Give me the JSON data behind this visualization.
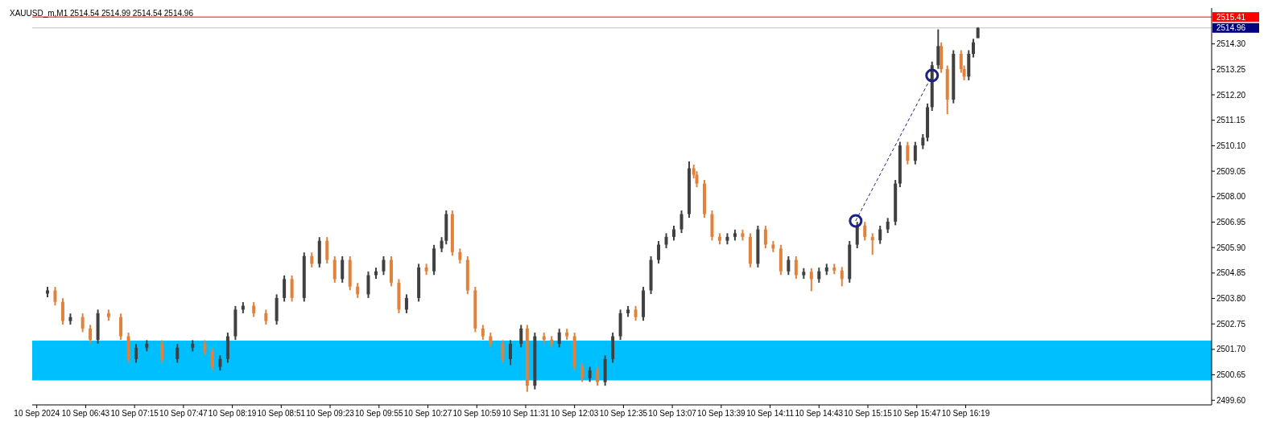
{
  "chart_data": {
    "type": "candlestick",
    "title": "XAUUSD_m,M1  2514.54 2514.99 2514.54 2514.96",
    "colors": [
      "#404040",
      "#e0823c",
      "#e0823c",
      "#404040",
      "#e0823c",
      "#e0823c",
      "#404040",
      "#e0823c",
      "#e0823c",
      "#e0823c",
      "#404040",
      "#404040",
      "#e0823c",
      "#404040",
      "#404040",
      "#e0823c",
      "#e0823c",
      "#404040",
      "#404040",
      "#404040",
      "#404040",
      "#e0823c",
      "#e0823c",
      "#404040",
      "#404040",
      "#e0823c",
      "#404040",
      "#e0823c",
      "#404040",
      "#e0823c",
      "#e0823c",
      "#404040",
      "#e0823c",
      "#e0823c",
      "#404040",
      "#404040",
      "#404040",
      "#e0823c",
      "#e0823c",
      "#404040",
      "#404040",
      "#e0823c",
      "#404040",
      "#404040",
      "#404040",
      "#e0823c",
      "#e0823c",
      "#e0823c",
      "#e0823c",
      "#e0823c",
      "#e0823c",
      "#e0823c",
      "#404040",
      "#404040",
      "#e0823c",
      "#404040",
      "#e0823c",
      "#e0823c",
      "#404040",
      "#e0823c",
      "#e0823c",
      "#e0823c",
      "#404040",
      "#e0823c",
      "#404040",
      "#404040",
      "#404040",
      "#404040",
      "#e0823c",
      "#404040",
      "#404040",
      "#404040",
      "#404040",
      "#404040",
      "#404040",
      "#404040",
      "#e0823c",
      "#e0823c",
      "#e0823c",
      "#e0823c",
      "#e0823c",
      "#404040",
      "#404040",
      "#e0823c",
      "#e0823c",
      "#404040",
      "#e0823c",
      "#e0823c",
      "#e0823c",
      "#404040",
      "#e0823c",
      "#404040",
      "#e0823c",
      "#404040",
      "#404040",
      "#e0823c",
      "#e0823c",
      "#404040",
      "#404040",
      "#e0823c",
      "#e0823c",
      "#404040",
      "#404040",
      "#404040",
      "#404040",
      "#e0823c",
      "#404040",
      "#404040",
      "#404040",
      "#404040",
      "#404040",
      "#e0823c",
      "#e0823c",
      "#404040",
      "#e0823c",
      "#e0823c",
      "#404040",
      "#404040",
      "#404040"
    ],
    "x": [
      "2024-09-10T06:18",
      "2024-09-10T06:23",
      "2024-09-10T06:28",
      "2024-09-10T06:33",
      "2024-09-10T06:41",
      "2024-09-10T06:46",
      "2024-09-10T06:51",
      "2024-09-10T06:58",
      "2024-09-10T07:06",
      "2024-09-10T07:11",
      "2024-09-10T07:16",
      "2024-09-10T07:23",
      "2024-09-10T07:33",
      "2024-09-10T07:43",
      "2024-09-10T07:53",
      "2024-09-10T08:01",
      "2024-09-10T08:06",
      "2024-09-10T08:11",
      "2024-09-10T08:16",
      "2024-09-10T08:21",
      "2024-09-10T08:26",
      "2024-09-10T08:33",
      "2024-09-10T08:41",
      "2024-09-10T08:48",
      "2024-09-10T08:53",
      "2024-09-10T08:58",
      "2024-09-10T09:06",
      "2024-09-10T09:11",
      "2024-09-10T09:16",
      "2024-09-10T09:21",
      "2024-09-10T09:26",
      "2024-09-10T09:31",
      "2024-09-10T09:36",
      "2024-09-10T09:41",
      "2024-09-10T09:48",
      "2024-09-10T09:53",
      "2024-09-10T09:58",
      "2024-09-10T10:03",
      "2024-09-10T10:08",
      "2024-09-10T10:13",
      "2024-09-10T10:21",
      "2024-09-10T10:26",
      "2024-09-10T10:31",
      "2024-09-10T10:36",
      "2024-09-10T10:39",
      "2024-09-10T10:43",
      "2024-09-10T10:48",
      "2024-09-10T10:53",
      "2024-09-10T10:58",
      "2024-09-10T11:03",
      "2024-09-10T11:08",
      "2024-09-10T11:16",
      "2024-09-10T11:21",
      "2024-09-10T11:28",
      "2024-09-10T11:32",
      "2024-09-10T11:37",
      "2024-09-10T11:43",
      "2024-09-10T11:48",
      "2024-09-10T11:53",
      "2024-09-10T11:58",
      "2024-09-10T12:03",
      "2024-09-10T12:08",
      "2024-09-10T12:13",
      "2024-09-10T12:18",
      "2024-09-10T12:23",
      "2024-09-10T12:28",
      "2024-09-10T12:33",
      "2024-09-10T12:38",
      "2024-09-10T12:43",
      "2024-09-10T12:48",
      "2024-09-10T12:53",
      "2024-09-10T12:58",
      "2024-09-10T13:03",
      "2024-09-10T13:08",
      "2024-09-10T13:13",
      "2024-09-10T13:18",
      "2024-09-10T13:21",
      "2024-09-10T13:23",
      "2024-09-10T13:28",
      "2024-09-10T13:33",
      "2024-09-10T13:38",
      "2024-09-10T13:43",
      "2024-09-10T13:48",
      "2024-09-10T13:53",
      "2024-09-10T13:58",
      "2024-09-10T14:03",
      "2024-09-10T14:08",
      "2024-09-10T14:13",
      "2024-09-10T14:18",
      "2024-09-10T14:23",
      "2024-09-10T14:28",
      "2024-09-10T14:33",
      "2024-09-10T14:38",
      "2024-09-10T14:43",
      "2024-09-10T14:48",
      "2024-09-10T14:53",
      "2024-09-10T14:58",
      "2024-09-10T15:03",
      "2024-09-10T15:08",
      "2024-09-10T15:13",
      "2024-09-10T15:18",
      "2024-09-10T15:23",
      "2024-09-10T15:28",
      "2024-09-10T15:33",
      "2024-09-10T15:36",
      "2024-09-10T15:41",
      "2024-09-10T15:46",
      "2024-09-10T15:51",
      "2024-09-10T15:54",
      "2024-09-10T15:57",
      "2024-09-10T16:01",
      "2024-09-10T16:03",
      "2024-09-10T16:07",
      "2024-09-10T16:11",
      "2024-09-10T16:16",
      "2024-09-10T16:18",
      "2024-09-10T16:21",
      "2024-09-10T16:24",
      "2024-09-10T16:27"
    ],
    "ohlc": [
      [
        2504.0,
        2504.28,
        2503.85,
        2504.13
      ],
      [
        2504.13,
        2504.28,
        2503.51,
        2503.66
      ],
      [
        2503.66,
        2503.81,
        2502.72,
        2502.87
      ],
      [
        2502.87,
        2503.18,
        2502.72,
        2503.03
      ],
      [
        2503.03,
        2503.18,
        2502.41,
        2502.56
      ],
      [
        2502.56,
        2502.71,
        2501.94,
        2502.09
      ],
      [
        2502.09,
        2503.34,
        2501.94,
        2503.19
      ],
      [
        2503.19,
        2503.34,
        2502.88,
        2503.03
      ],
      [
        2503.03,
        2503.18,
        2502.09,
        2502.24
      ],
      [
        2502.24,
        2502.39,
        2501.15,
        2501.3
      ],
      [
        2501.3,
        2501.92,
        2501.15,
        2501.77
      ],
      [
        2501.77,
        2502.08,
        2501.62,
        2501.93
      ],
      [
        2501.93,
        2502.08,
        2501.15,
        2501.3
      ],
      [
        2501.3,
        2501.92,
        2501.15,
        2501.77
      ],
      [
        2501.77,
        2502.08,
        2501.62,
        2501.93
      ],
      [
        2501.93,
        2502.08,
        2501.46,
        2501.61
      ],
      [
        2501.61,
        2501.76,
        2500.83,
        2500.98
      ],
      [
        2500.98,
        2501.45,
        2500.83,
        2501.3
      ],
      [
        2501.3,
        2502.39,
        2501.15,
        2502.24
      ],
      [
        2502.24,
        2503.49,
        2502.09,
        2503.34
      ],
      [
        2503.34,
        2503.65,
        2503.19,
        2503.5
      ],
      [
        2503.5,
        2503.65,
        2503.04,
        2503.19
      ],
      [
        2503.19,
        2503.34,
        2502.72,
        2502.87
      ],
      [
        2502.87,
        2503.97,
        2502.72,
        2503.82
      ],
      [
        2503.82,
        2504.75,
        2503.67,
        2504.6
      ],
      [
        2504.6,
        2504.75,
        2503.67,
        2503.82
      ],
      [
        2503.82,
        2505.7,
        2503.67,
        2505.55
      ],
      [
        2505.55,
        2505.7,
        2505.08,
        2505.23
      ],
      [
        2505.23,
        2506.33,
        2505.08,
        2506.18
      ],
      [
        2506.18,
        2506.33,
        2505.24,
        2505.39
      ],
      [
        2505.39,
        2505.54,
        2504.45,
        2504.6
      ],
      [
        2504.6,
        2505.54,
        2504.45,
        2505.39
      ],
      [
        2505.39,
        2505.54,
        2504.14,
        2504.29
      ],
      [
        2504.29,
        2504.44,
        2503.82,
        2503.97
      ],
      [
        2503.97,
        2504.91,
        2503.82,
        2504.76
      ],
      [
        2504.76,
        2505.07,
        2504.61,
        2504.92
      ],
      [
        2504.92,
        2505.54,
        2504.77,
        2505.39
      ],
      [
        2505.39,
        2505.54,
        2504.3,
        2504.45
      ],
      [
        2504.45,
        2504.6,
        2503.19,
        2503.34
      ],
      [
        2503.34,
        2503.97,
        2503.19,
        2503.82
      ],
      [
        2503.82,
        2505.23,
        2503.67,
        2505.08
      ],
      [
        2505.08,
        2505.23,
        2504.77,
        2504.92
      ],
      [
        2504.92,
        2506.01,
        2504.77,
        2505.86
      ],
      [
        2505.86,
        2506.33,
        2505.71,
        2506.18
      ],
      [
        2506.18,
        2507.43,
        2506.03,
        2507.28
      ],
      [
        2507.28,
        2507.43,
        2505.56,
        2505.71
      ],
      [
        2505.71,
        2505.86,
        2505.24,
        2505.39
      ],
      [
        2505.39,
        2505.54,
        2503.98,
        2504.13
      ],
      [
        2504.13,
        2504.28,
        2502.41,
        2502.56
      ],
      [
        2502.56,
        2502.71,
        2502.09,
        2502.24
      ],
      [
        2502.24,
        2502.39,
        2501.78,
        2501.93
      ],
      [
        2501.93,
        2502.08,
        2501.15,
        2501.3
      ],
      [
        2501.3,
        2502.08,
        2501.05,
        2501.93
      ],
      [
        2501.93,
        2502.71,
        2501.78,
        2502.56
      ],
      [
        2502.56,
        2502.71,
        2499.95,
        2500.2
      ],
      [
        2500.2,
        2502.39,
        2500.05,
        2502.24
      ],
      [
        2502.24,
        2502.39,
        2501.95,
        2502.1
      ],
      [
        2502.1,
        2502.25,
        2501.78,
        2501.93
      ],
      [
        2501.93,
        2502.55,
        2501.78,
        2502.4
      ],
      [
        2502.4,
        2502.55,
        2502.09,
        2502.24
      ],
      [
        2502.24,
        2502.39,
        2500.83,
        2500.98
      ],
      [
        2500.98,
        2501.13,
        2500.36,
        2500.51
      ],
      [
        2500.51,
        2500.98,
        2500.36,
        2500.83
      ],
      [
        2500.83,
        2500.98,
        2500.2,
        2500.35
      ],
      [
        2500.35,
        2501.45,
        2500.2,
        2501.3
      ],
      [
        2501.3,
        2502.39,
        2501.15,
        2502.24
      ],
      [
        2502.24,
        2503.34,
        2502.09,
        2503.19
      ],
      [
        2503.19,
        2503.49,
        2503.04,
        2503.34
      ],
      [
        2503.34,
        2503.49,
        2502.88,
        2503.03
      ],
      [
        2503.03,
        2504.28,
        2502.88,
        2504.13
      ],
      [
        2504.13,
        2505.54,
        2503.98,
        2505.39
      ],
      [
        2505.39,
        2506.17,
        2505.24,
        2506.02
      ],
      [
        2506.02,
        2506.49,
        2505.87,
        2506.34
      ],
      [
        2506.34,
        2506.8,
        2506.19,
        2506.65
      ],
      [
        2506.65,
        2507.43,
        2506.5,
        2507.28
      ],
      [
        2507.28,
        2509.45,
        2507.13,
        2509.17
      ],
      [
        2509.17,
        2509.32,
        2508.75,
        2508.9
      ],
      [
        2508.9,
        2509.05,
        2508.39,
        2508.54
      ],
      [
        2508.54,
        2508.69,
        2507.13,
        2507.28
      ],
      [
        2507.28,
        2507.43,
        2506.19,
        2506.34
      ],
      [
        2506.34,
        2506.49,
        2506.03,
        2506.18
      ],
      [
        2506.18,
        2506.49,
        2506.03,
        2506.34
      ],
      [
        2506.34,
        2506.64,
        2506.19,
        2506.49
      ],
      [
        2506.49,
        2506.64,
        2506.19,
        2506.34
      ],
      [
        2506.34,
        2506.49,
        2505.08,
        2505.23
      ],
      [
        2505.23,
        2506.8,
        2505.08,
        2506.65
      ],
      [
        2506.65,
        2506.8,
        2505.87,
        2506.02
      ],
      [
        2506.02,
        2506.17,
        2505.71,
        2505.86
      ],
      [
        2505.86,
        2506.01,
        2504.77,
        2504.92
      ],
      [
        2504.92,
        2505.54,
        2504.77,
        2505.39
      ],
      [
        2505.39,
        2505.54,
        2504.61,
        2504.76
      ],
      [
        2504.76,
        2505.05,
        2504.61,
        2504.9
      ],
      [
        2504.9,
        2505.05,
        2504.1,
        2504.6
      ],
      [
        2504.6,
        2505.07,
        2504.45,
        2504.92
      ],
      [
        2504.92,
        2505.23,
        2504.77,
        2505.08
      ],
      [
        2505.08,
        2505.23,
        2504.8,
        2504.95
      ],
      [
        2504.95,
        2505.1,
        2504.3,
        2504.6
      ],
      [
        2504.6,
        2506.17,
        2504.45,
        2506.02
      ],
      [
        2506.02,
        2506.96,
        2505.87,
        2506.81
      ],
      [
        2506.81,
        2506.96,
        2506.19,
        2506.34
      ],
      [
        2506.34,
        2506.49,
        2505.6,
        2506.2
      ],
      [
        2506.2,
        2506.8,
        2506.05,
        2506.65
      ],
      [
        2506.65,
        2507.12,
        2506.5,
        2506.97
      ],
      [
        2506.97,
        2508.69,
        2506.82,
        2508.54
      ],
      [
        2508.54,
        2510.26,
        2508.39,
        2510.11
      ],
      [
        2510.11,
        2510.26,
        2509.33,
        2509.48
      ],
      [
        2509.48,
        2510.26,
        2509.33,
        2510.11
      ],
      [
        2510.11,
        2510.58,
        2509.96,
        2510.43
      ],
      [
        2510.43,
        2511.84,
        2510.28,
        2511.69
      ],
      [
        2511.69,
        2513.57,
        2511.54,
        2513.42
      ],
      [
        2513.42,
        2514.9,
        2513.27,
        2514.21
      ],
      [
        2514.21,
        2514.36,
        2513.11,
        2513.26
      ],
      [
        2513.26,
        2513.41,
        2511.4,
        2512.0
      ],
      [
        2512.0,
        2514.04,
        2511.85,
        2513.89
      ],
      [
        2513.89,
        2514.04,
        2513.11,
        2513.26
      ],
      [
        2513.26,
        2513.41,
        2512.8,
        2512.95
      ],
      [
        2512.95,
        2514.04,
        2512.8,
        2513.89
      ],
      [
        2513.89,
        2514.51,
        2513.74,
        2514.36
      ],
      [
        2514.54,
        2514.99,
        2514.54,
        2514.96
      ]
    ],
    "series": [
      {
        "type": "line",
        "color": "#1a237e",
        "line_style": "dashed",
        "marker": "circle",
        "x": [
          "2024-09-10T15:07",
          "2024-09-10T15:57"
        ],
        "values": [
          2507.0,
          2513.0
        ]
      }
    ],
    "xlim": [
      "2024-09-10T06:08",
      "2024-09-10T19:00"
    ],
    "xticks": [
      {
        "value": "2024-09-10T06:11",
        "label": "10 Sep 2024"
      },
      {
        "value": "2024-09-10T06:43",
        "label": "10 Sep 06:43"
      },
      {
        "value": "2024-09-10T07:15",
        "label": "10 Sep 07:15"
      },
      {
        "value": "2024-09-10T07:47",
        "label": "10 Sep 07:47"
      },
      {
        "value": "2024-09-10T08:19",
        "label": "10 Sep 08:19"
      },
      {
        "value": "2024-09-10T08:51",
        "label": "10 Sep 08:51"
      },
      {
        "value": "2024-09-10T09:23",
        "label": "10 Sep 09:23"
      },
      {
        "value": "2024-09-10T09:55",
        "label": "10 Sep 09:55"
      },
      {
        "value": "2024-09-10T10:27",
        "label": "10 Sep 10:27"
      },
      {
        "value": "2024-09-10T10:59",
        "label": "10 Sep 10:59"
      },
      {
        "value": "2024-09-10T11:31",
        "label": "10 Sep 11:31"
      },
      {
        "value": "2024-09-10T12:03",
        "label": "10 Sep 12:03"
      },
      {
        "value": "2024-09-10T12:35",
        "label": "10 Sep 12:35"
      },
      {
        "value": "2024-09-10T13:07",
        "label": "10 Sep 13:07"
      },
      {
        "value": "2024-09-10T13:39",
        "label": "10 Sep 13:39"
      },
      {
        "value": "2024-09-10T14:11",
        "label": "10 Sep 14:11"
      },
      {
        "value": "2024-09-10T14:43",
        "label": "10 Sep 14:43"
      },
      {
        "value": "2024-09-10T15:15",
        "label": "10 Sep 15:15"
      },
      {
        "value": "2024-09-10T15:47",
        "label": "10 Sep 15:47"
      },
      {
        "value": "2024-09-10T16:19",
        "label": "10 Sep 16:19"
      }
    ],
    "ylim": [
      2499.41,
      2515.78
    ],
    "yticks": [
      {
        "value": 2499.6,
        "label": "2499.60"
      },
      {
        "value": 2500.65,
        "label": "2500.65"
      },
      {
        "value": 2501.7,
        "label": "2501.70"
      },
      {
        "value": 2502.75,
        "label": "2502.75"
      },
      {
        "value": 2503.8,
        "label": "2503.80"
      },
      {
        "value": 2504.85,
        "label": "2504.85"
      },
      {
        "value": 2505.9,
        "label": "2505.90"
      },
      {
        "value": 2506.95,
        "label": "2506.95"
      },
      {
        "value": 2508.0,
        "label": "2508.00"
      },
      {
        "value": 2509.05,
        "label": "2509.05"
      },
      {
        "value": 2510.1,
        "label": "2510.10"
      },
      {
        "value": 2511.15,
        "label": "2511.15"
      },
      {
        "value": 2512.2,
        "label": "2512.20"
      },
      {
        "value": 2513.25,
        "label": "2513.25"
      },
      {
        "value": 2514.3,
        "label": "2514.30"
      }
    ],
    "ref_lines": [
      {
        "axis": "y",
        "value": 2515.41,
        "label": "2515.41",
        "color": "#ff0000"
      },
      {
        "axis": "y",
        "value": 2514.96,
        "label": "2514.96",
        "color": "#c0c0c0"
      }
    ],
    "bands": [
      {
        "axis": "y",
        "from": 2500.42,
        "to": 2502.06,
        "color": "#00bfff"
      }
    ]
  }
}
